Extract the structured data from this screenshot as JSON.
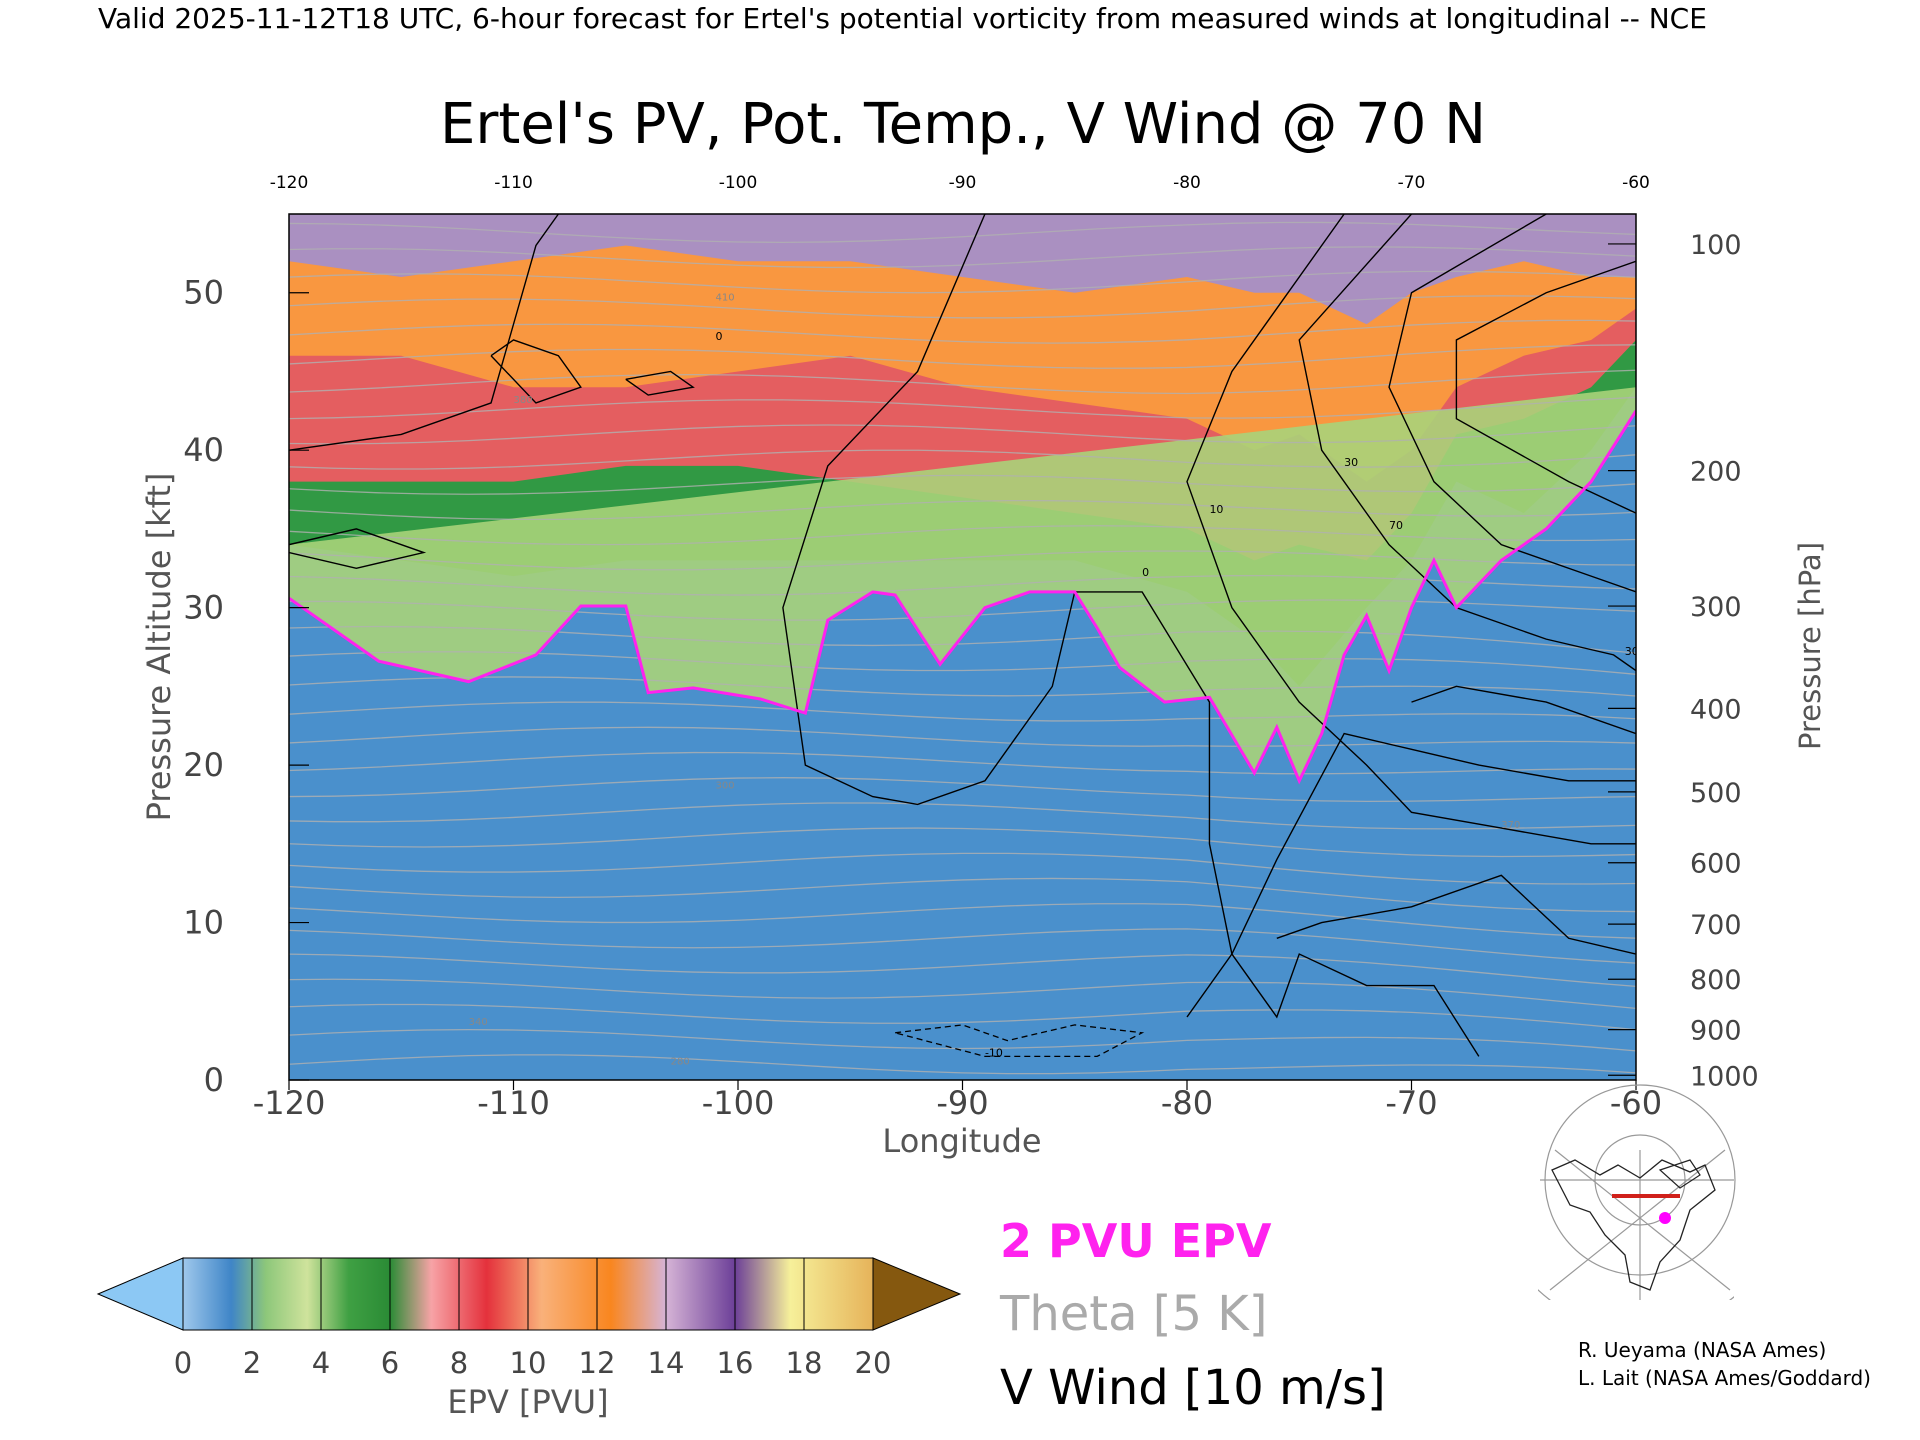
{
  "header": {
    "valid_line": "Valid 2025-11-12T18 UTC, 6-hour forecast for Ertel's potential vorticity from measured winds at longitudinal -- NCE"
  },
  "chart_data": {
    "type": "heatmap",
    "title": "Ertel's PV, Pot. Temp., V Wind @ 70 N",
    "xlabel": "Longitude",
    "ylabel_left": "Pressure Altitude [kft]",
    "ylabel_right": "Pressure [hPa]",
    "xlim": [
      -120,
      -60
    ],
    "ylim": [
      0,
      55
    ],
    "x_ticks_bottom": [
      "-120",
      "-110",
      "-100",
      "-90",
      "-80",
      "-70",
      "-60"
    ],
    "x_ticks_top": [
      "-120",
      "-110",
      "-100",
      "-90",
      "-80",
      "-70",
      "-60"
    ],
    "y_ticks_left": [
      "0",
      "10",
      "20",
      "30",
      "40",
      "50"
    ],
    "pressure_ticks": [
      {
        "hPa": 100,
        "kft": 53.1,
        "label": "100"
      },
      {
        "hPa": 200,
        "kft": 38.7,
        "label": "200"
      },
      {
        "hPa": 300,
        "kft": 30.1,
        "label": "300"
      },
      {
        "hPa": 400,
        "kft": 23.6,
        "label": "400"
      },
      {
        "hPa": 500,
        "kft": 18.3,
        "label": "500"
      },
      {
        "hPa": 600,
        "kft": 13.8,
        "label": "600"
      },
      {
        "hPa": 700,
        "kft": 9.9,
        "label": "700"
      },
      {
        "hPa": 800,
        "kft": 6.4,
        "label": "800"
      },
      {
        "hPa": 900,
        "kft": 3.2,
        "label": "900"
      },
      {
        "hPa": 1000,
        "kft": 0.3,
        "label": "1000"
      }
    ],
    "epv_2pvu_boundary": [
      [
        -120,
        30.6
      ],
      [
        -116,
        26.6
      ],
      [
        -112,
        25.3
      ],
      [
        -109,
        27.0
      ],
      [
        -107,
        30.1
      ],
      [
        -105,
        30.1
      ],
      [
        -104,
        24.6
      ],
      [
        -102,
        24.9
      ],
      [
        -99,
        24.2
      ],
      [
        -97,
        23.3
      ],
      [
        -96,
        29.2
      ],
      [
        -94,
        31.0
      ],
      [
        -93,
        30.8
      ],
      [
        -91,
        26.4
      ],
      [
        -89,
        30.0
      ],
      [
        -87,
        31.0
      ],
      [
        -85,
        31.0
      ],
      [
        -84,
        28.7
      ],
      [
        -83,
        26.2
      ],
      [
        -81,
        24.0
      ],
      [
        -79,
        24.3
      ],
      [
        -77,
        19.5
      ],
      [
        -76,
        22.4
      ],
      [
        -75,
        19.0
      ],
      [
        -74,
        22.0
      ],
      [
        -73,
        27.0
      ],
      [
        -72,
        29.5
      ],
      [
        -71,
        26.0
      ],
      [
        -70,
        30.0
      ],
      [
        -69,
        33.0
      ],
      [
        -68,
        30.0
      ],
      [
        -66,
        33.0
      ],
      [
        -64,
        35.0
      ],
      [
        -62,
        38.0
      ],
      [
        -60,
        42.5
      ]
    ],
    "epv_bands": [
      {
        "x": [
          -120,
          -115,
          -110,
          -105,
          -100,
          -95,
          -90,
          -85,
          -80,
          -77,
          -75,
          -72,
          -70,
          -68,
          -65,
          -62,
          -60
        ],
        "y_4": [
          34,
          33,
          32,
          33,
          33,
          33,
          33,
          33,
          31,
          28,
          25,
          30,
          33,
          38,
          36,
          40,
          44
        ],
        "y_8": [
          38,
          38,
          38,
          39,
          39,
          38,
          37,
          36,
          35,
          33,
          34,
          33,
          36,
          41,
          42,
          44,
          47
        ],
        "y_12": [
          46,
          46,
          44,
          44,
          45,
          46,
          44,
          43,
          42,
          40,
          41,
          38,
          40,
          44,
          46,
          47,
          49
        ],
        "y_16": [
          52,
          51,
          52,
          53,
          52,
          52,
          51,
          50,
          51,
          50,
          50,
          48,
          50,
          51,
          52,
          51,
          51
        ]
      }
    ],
    "theta_labels": [
      "300",
      "370",
      "380",
      "410",
      "280",
      "340"
    ],
    "vwind_contour_labels": [
      "0",
      "10",
      "-10",
      "30",
      "70"
    ],
    "colorbar": {
      "label": "EPV [PVU]",
      "ticks": [
        "0",
        "2",
        "4",
        "6",
        "8",
        "10",
        "12",
        "14",
        "16",
        "18",
        "20"
      ],
      "colors": [
        "#4e95d6",
        "#a9d37a",
        "#2f9a3c",
        "#ee5b62",
        "#fa9a3e",
        "#a58fc8",
        "#6a3f9a",
        "#8a5a10"
      ]
    },
    "legend": {
      "pvu": "2 PVU EPV",
      "theta": "Theta [5 K]",
      "vwind": "V Wind [10 m/s]",
      "colors": {
        "pvu": "#ff22ee",
        "theta": "#aaaaaa",
        "vwind": "#000000"
      }
    }
  },
  "credits": {
    "line1": "R. Ueyama (NASA Ames)",
    "line2": "L. Lait (NASA Ames/Goddard)"
  },
  "map_inset": {
    "icon": "polar-map-icon",
    "marker_color": "#ff00ff"
  }
}
